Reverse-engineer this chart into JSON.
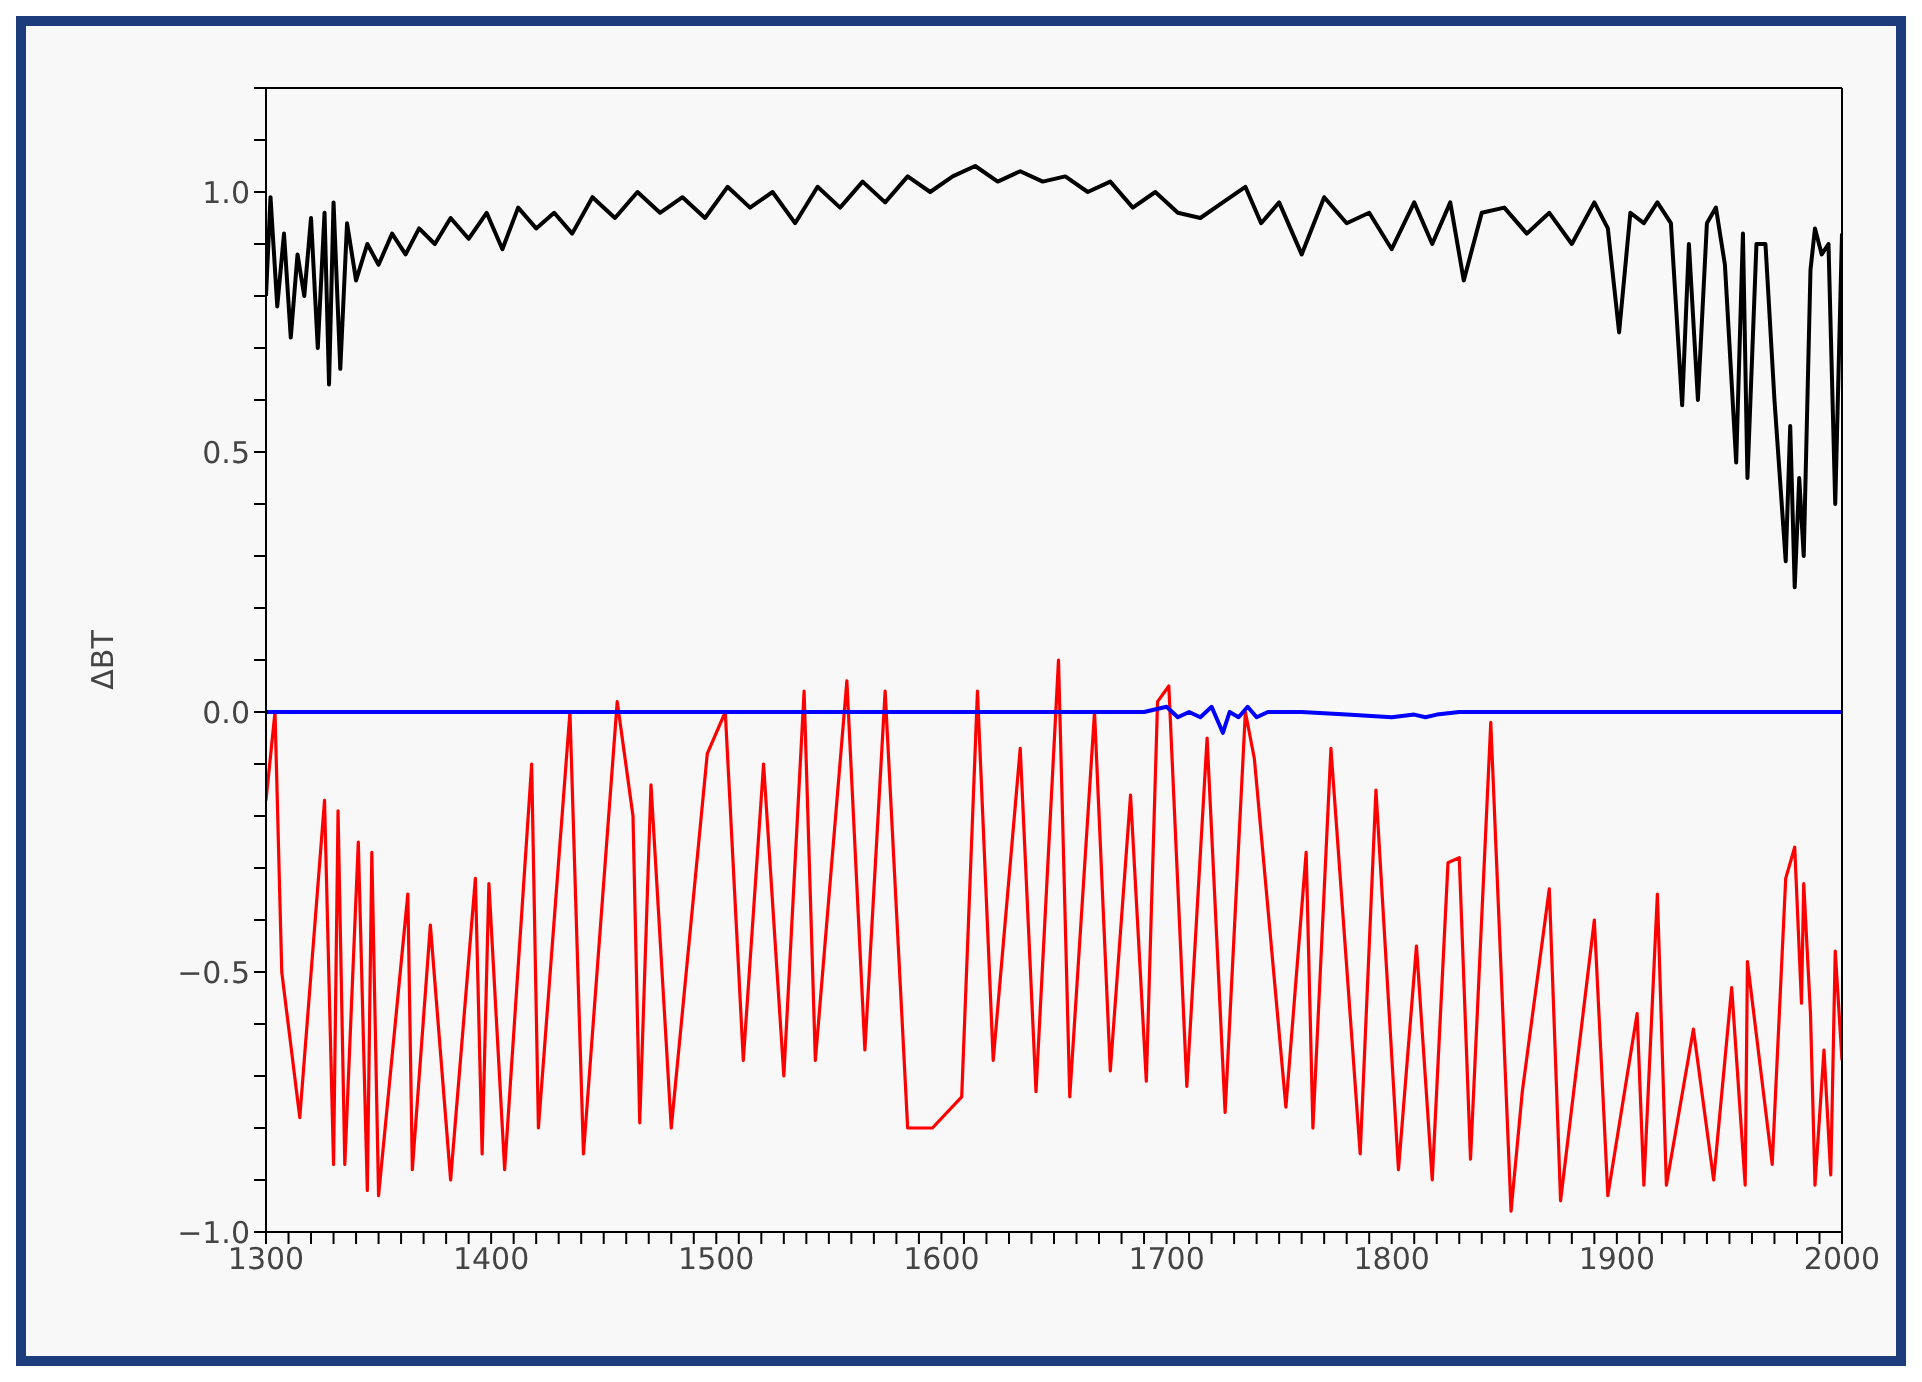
{
  "chart_data": {
    "type": "line",
    "ylabel": "ΔBT",
    "xlim": [
      1300,
      2000
    ],
    "ylim": [
      -1.0,
      1.2
    ],
    "xticks": [
      1300,
      {
        "value": 1310,
        "label": null
      },
      {
        "value": 1320,
        "label": null
      },
      {
        "value": 1330,
        "label": null
      },
      {
        "value": 1340,
        "label": null
      },
      {
        "value": 1350,
        "label": null
      },
      {
        "value": 1360,
        "label": null
      },
      {
        "value": 1370,
        "label": null
      },
      {
        "value": 1380,
        "label": null
      },
      {
        "value": 1390,
        "label": null
      },
      1400,
      {
        "value": 1410,
        "label": null
      },
      {
        "value": 1420,
        "label": null
      },
      {
        "value": 1430,
        "label": null
      },
      {
        "value": 1440,
        "label": null
      },
      {
        "value": 1450,
        "label": null
      },
      {
        "value": 1460,
        "label": null
      },
      {
        "value": 1470,
        "label": null
      },
      {
        "value": 1480,
        "label": null
      },
      {
        "value": 1490,
        "label": null
      },
      1500,
      {
        "value": 1510,
        "label": null
      },
      {
        "value": 1520,
        "label": null
      },
      {
        "value": 1530,
        "label": null
      },
      {
        "value": 1540,
        "label": null
      },
      {
        "value": 1550,
        "label": null
      },
      {
        "value": 1560,
        "label": null
      },
      {
        "value": 1570,
        "label": null
      },
      {
        "value": 1580,
        "label": null
      },
      {
        "value": 1590,
        "label": null
      },
      1600,
      {
        "value": 1610,
        "label": null
      },
      {
        "value": 1620,
        "label": null
      },
      {
        "value": 1630,
        "label": null
      },
      {
        "value": 1640,
        "label": null
      },
      {
        "value": 1650,
        "label": null
      },
      {
        "value": 1660,
        "label": null
      },
      {
        "value": 1670,
        "label": null
      },
      {
        "value": 1680,
        "label": null
      },
      {
        "value": 1690,
        "label": null
      },
      1700,
      {
        "value": 1710,
        "label": null
      },
      {
        "value": 1720,
        "label": null
      },
      {
        "value": 1730,
        "label": null
      },
      {
        "value": 1740,
        "label": null
      },
      {
        "value": 1750,
        "label": null
      },
      {
        "value": 1760,
        "label": null
      },
      {
        "value": 1770,
        "label": null
      },
      {
        "value": 1780,
        "label": null
      },
      {
        "value": 1790,
        "label": null
      },
      1800,
      {
        "value": 1810,
        "label": null
      },
      {
        "value": 1820,
        "label": null
      },
      {
        "value": 1830,
        "label": null
      },
      {
        "value": 1840,
        "label": null
      },
      {
        "value": 1850,
        "label": null
      },
      {
        "value": 1860,
        "label": null
      },
      {
        "value": 1870,
        "label": null
      },
      {
        "value": 1880,
        "label": null
      },
      {
        "value": 1890,
        "label": null
      },
      1900,
      {
        "value": 1910,
        "label": null
      },
      {
        "value": 1920,
        "label": null
      },
      {
        "value": 1930,
        "label": null
      },
      {
        "value": 1940,
        "label": null
      },
      {
        "value": 1950,
        "label": null
      },
      {
        "value": 1960,
        "label": null
      },
      {
        "value": 1970,
        "label": null
      },
      {
        "value": 1980,
        "label": null
      },
      {
        "value": 1990,
        "label": null
      },
      2000
    ],
    "yticks": [
      {
        "value": -1.0,
        "label": "−1.0"
      },
      {
        "value": -0.9,
        "label": null
      },
      {
        "value": -0.8,
        "label": null
      },
      {
        "value": -0.7,
        "label": null
      },
      {
        "value": -0.6,
        "label": null
      },
      {
        "value": -0.5,
        "label": "−0.5"
      },
      {
        "value": -0.4,
        "label": null
      },
      {
        "value": -0.3,
        "label": null
      },
      {
        "value": -0.2,
        "label": null
      },
      {
        "value": -0.1,
        "label": null
      },
      {
        "value": 0,
        "label": "0.0"
      },
      {
        "value": 0.1,
        "label": null
      },
      {
        "value": 0.2,
        "label": null
      },
      {
        "value": 0.3,
        "label": null
      },
      {
        "value": 0.4,
        "label": null
      },
      {
        "value": 0.5,
        "label": "0.5"
      },
      {
        "value": 0.6,
        "label": null
      },
      {
        "value": 0.7,
        "label": null
      },
      {
        "value": 0.8,
        "label": null
      },
      {
        "value": 0.9,
        "label": null
      },
      {
        "value": 1.0,
        "label": "1.0"
      },
      {
        "value": 1.1,
        "label": null
      },
      {
        "value": 1.2,
        "label": null
      }
    ],
    "series": [
      {
        "color": "#000000",
        "x": [
          1300,
          1302,
          1305,
          1308,
          1311,
          1314,
          1317,
          1320,
          1323,
          1326,
          1328,
          1330,
          1333,
          1336,
          1340,
          1345,
          1350,
          1356,
          1362,
          1368,
          1375,
          1382,
          1390,
          1398,
          1405,
          1412,
          1420,
          1428,
          1436,
          1445,
          1455,
          1465,
          1475,
          1485,
          1495,
          1505,
          1515,
          1525,
          1535,
          1545,
          1555,
          1565,
          1575,
          1585,
          1595,
          1605,
          1615,
          1625,
          1635,
          1645,
          1655,
          1665,
          1675,
          1685,
          1695,
          1705,
          1715,
          1725,
          1735,
          1742,
          1750,
          1760,
          1770,
          1780,
          1790,
          1800,
          1810,
          1818,
          1826,
          1832,
          1840,
          1850,
          1860,
          1870,
          1880,
          1890,
          1896,
          1901,
          1906,
          1912,
          1918,
          1924,
          1929,
          1932,
          1936,
          1940,
          1944,
          1948,
          1953,
          1956,
          1958,
          1962,
          1966,
          1970,
          1975,
          1977,
          1979,
          1981,
          1983,
          1986,
          1988,
          1991,
          1994,
          1997,
          2000
        ],
        "values": [
          0.8,
          0.99,
          0.78,
          0.92,
          0.72,
          0.88,
          0.8,
          0.95,
          0.7,
          0.96,
          0.63,
          0.98,
          0.66,
          0.94,
          0.83,
          0.9,
          0.86,
          0.92,
          0.88,
          0.93,
          0.9,
          0.95,
          0.91,
          0.96,
          0.89,
          0.97,
          0.93,
          0.96,
          0.92,
          0.99,
          0.95,
          1.0,
          0.96,
          0.99,
          0.95,
          1.01,
          0.97,
          1.0,
          0.94,
          1.01,
          0.97,
          1.02,
          0.98,
          1.03,
          1.0,
          1.03,
          1.05,
          1.02,
          1.04,
          1.02,
          1.03,
          1.0,
          1.02,
          0.97,
          1.0,
          0.96,
          0.95,
          0.98,
          1.01,
          0.94,
          0.98,
          0.88,
          0.99,
          0.94,
          0.96,
          0.89,
          0.98,
          0.9,
          0.98,
          0.83,
          0.96,
          0.97,
          0.92,
          0.96,
          0.9,
          0.98,
          0.93,
          0.73,
          0.96,
          0.94,
          0.98,
          0.94,
          0.59,
          0.9,
          0.6,
          0.94,
          0.97,
          0.86,
          0.48,
          0.92,
          0.45,
          0.9,
          0.9,
          0.6,
          0.29,
          0.55,
          0.24,
          0.45,
          0.3,
          0.85,
          0.93,
          0.88,
          0.9,
          0.4,
          0.92
        ]
      },
      {
        "color": "#ff0000",
        "x": [
          1300,
          1304,
          1307,
          1315,
          1326,
          1330,
          1332,
          1335,
          1341,
          1345,
          1347,
          1350,
          1363,
          1365,
          1373,
          1382,
          1393,
          1396,
          1399,
          1406,
          1418,
          1421,
          1435,
          1441,
          1456,
          1463,
          1466,
          1471,
          1480,
          1496,
          1504,
          1512,
          1521,
          1530,
          1539,
          1544,
          1558,
          1566,
          1575,
          1585,
          1596,
          1609,
          1616,
          1623,
          1635,
          1642,
          1652,
          1657,
          1668,
          1675,
          1684,
          1691,
          1696,
          1701,
          1709,
          1718,
          1726,
          1735,
          1739,
          1753,
          1762,
          1765,
          1773,
          1786,
          1793,
          1803,
          1811,
          1818,
          1825,
          1830,
          1835,
          1844,
          1853,
          1858,
          1870,
          1875,
          1890,
          1896,
          1909,
          1912,
          1918,
          1922,
          1934,
          1943,
          1951,
          1957,
          1958,
          1969,
          1975,
          1979,
          1982,
          1983,
          1986,
          1988,
          1992,
          1995,
          1997,
          2000
        ],
        "values": [
          -0.17,
          0.0,
          -0.5,
          -0.78,
          -0.17,
          -0.87,
          -0.19,
          -0.87,
          -0.25,
          -0.92,
          -0.27,
          -0.93,
          -0.35,
          -0.88,
          -0.41,
          -0.9,
          -0.32,
          -0.85,
          -0.33,
          -0.88,
          -0.1,
          -0.8,
          0.0,
          -0.85,
          0.02,
          -0.2,
          -0.79,
          -0.14,
          -0.8,
          -0.08,
          0.0,
          -0.67,
          -0.1,
          -0.7,
          0.04,
          -0.67,
          0.06,
          -0.65,
          0.04,
          -0.8,
          -0.8,
          -0.74,
          0.04,
          -0.67,
          -0.07,
          -0.73,
          0.1,
          -0.74,
          0.0,
          -0.69,
          -0.16,
          -0.71,
          0.02,
          0.05,
          -0.72,
          -0.05,
          -0.77,
          0.0,
          -0.09,
          -0.76,
          -0.27,
          -0.8,
          -0.07,
          -0.85,
          -0.15,
          -0.88,
          -0.45,
          -0.9,
          -0.29,
          -0.28,
          -0.86,
          -0.02,
          -0.96,
          -0.73,
          -0.34,
          -0.94,
          -0.4,
          -0.93,
          -0.58,
          -0.91,
          -0.35,
          -0.91,
          -0.61,
          -0.9,
          -0.53,
          -0.91,
          -0.48,
          -0.87,
          -0.32,
          -0.26,
          -0.56,
          -0.33,
          -0.58,
          -0.91,
          -0.65,
          -0.89,
          -0.46,
          -0.67
        ]
      },
      {
        "color": "#0000ff",
        "x": [
          1300,
          1690,
          1700,
          1705,
          1710,
          1715,
          1720,
          1725,
          1728,
          1732,
          1736,
          1740,
          1745,
          1760,
          1780,
          1800,
          1810,
          1815,
          1820,
          1830,
          1850,
          1900,
          2000
        ],
        "values": [
          0,
          0,
          0.01,
          -0.01,
          0.0,
          -0.01,
          0.01,
          -0.04,
          0.0,
          -0.01,
          0.01,
          -0.01,
          0,
          0,
          -0.005,
          -0.01,
          -0.005,
          -0.01,
          -0.005,
          0,
          0,
          0,
          0
        ]
      }
    ]
  }
}
